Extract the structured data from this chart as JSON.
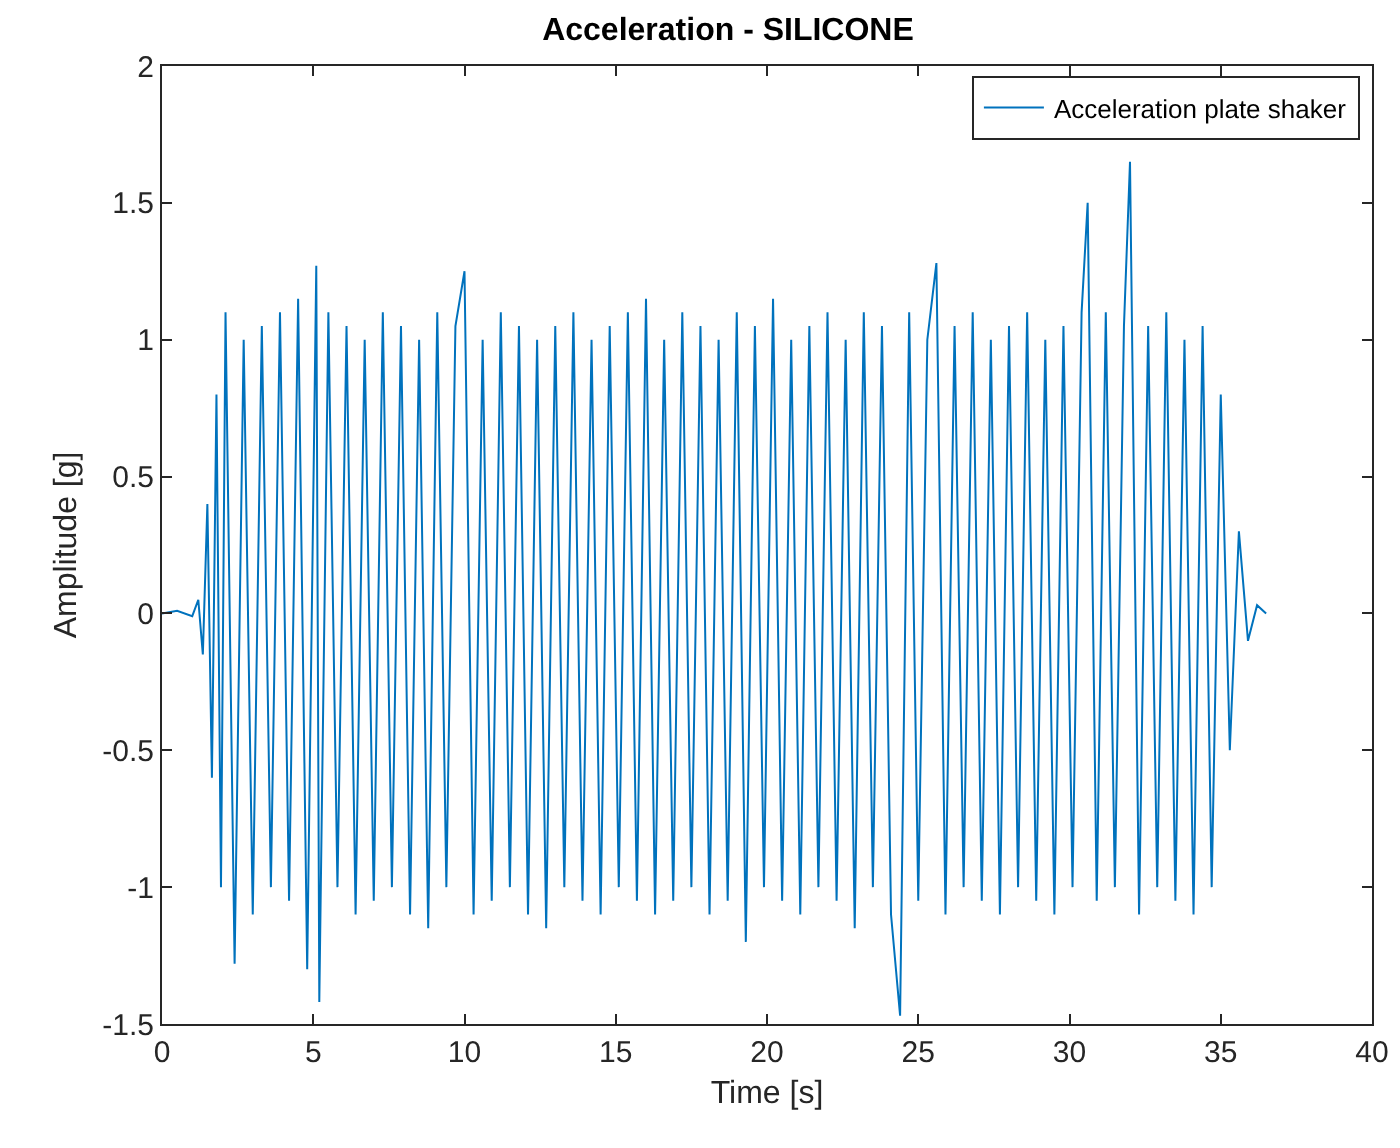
{
  "chart_data": {
    "type": "line",
    "title": "Acceleration - SILICONE",
    "xlabel": "Time [s]",
    "ylabel": "Amplitude [g]",
    "xlim": [
      0,
      40
    ],
    "xticks": [
      0,
      5,
      10,
      15,
      20,
      25,
      30,
      35,
      40
    ],
    "ylim": [
      -1.5,
      2
    ],
    "yticks": [
      -1.5,
      -1,
      -0.5,
      0,
      0.5,
      1,
      1.5,
      2
    ],
    "grid": false,
    "legend": "top right",
    "marker": "none",
    "line_style": "solid",
    "series": [
      {
        "name": "Acceleration plate shaker",
        "color": "#0072bd",
        "x": [
          0,
          0.5,
          1.0,
          1.2,
          1.35,
          1.5,
          1.65,
          1.8,
          1.95,
          2.1,
          2.4,
          2.7,
          3.0,
          3.3,
          3.6,
          3.9,
          4.2,
          4.5,
          4.8,
          5.1,
          5.2,
          5.5,
          5.8,
          6.1,
          6.4,
          6.7,
          7.0,
          7.3,
          7.6,
          7.9,
          8.2,
          8.5,
          8.8,
          9.1,
          9.4,
          9.7,
          10.0,
          10.3,
          10.6,
          10.9,
          11.2,
          11.5,
          11.8,
          12.1,
          12.4,
          12.7,
          13.0,
          13.3,
          13.6,
          13.9,
          14.2,
          14.5,
          14.8,
          15.1,
          15.4,
          15.7,
          16.0,
          16.3,
          16.6,
          16.9,
          17.2,
          17.5,
          17.8,
          18.1,
          18.4,
          18.7,
          19.0,
          19.3,
          19.6,
          19.9,
          20.2,
          20.5,
          20.8,
          21.1,
          21.4,
          21.7,
          22.0,
          22.3,
          22.6,
          22.9,
          23.2,
          23.5,
          23.8,
          24.1,
          24.4,
          24.7,
          25.0,
          25.3,
          25.6,
          25.9,
          26.2,
          26.5,
          26.8,
          27.1,
          27.4,
          27.7,
          28.0,
          28.3,
          28.6,
          28.9,
          29.2,
          29.5,
          29.8,
          30.1,
          30.4,
          30.6,
          30.9,
          31.2,
          31.5,
          31.8,
          32.0,
          32.3,
          32.6,
          32.9,
          33.2,
          33.5,
          33.8,
          34.1,
          34.4,
          34.7,
          35.0,
          35.3,
          35.6,
          35.9,
          36.2,
          36.5
        ],
        "values": [
          0,
          0.01,
          -0.01,
          0.05,
          -0.15,
          0.4,
          -0.6,
          0.8,
          -1.0,
          1.1,
          -1.28,
          1.0,
          -1.1,
          1.05,
          -1.0,
          1.1,
          -1.05,
          1.15,
          -1.3,
          1.27,
          -1.42,
          1.1,
          -1.0,
          1.05,
          -1.1,
          1.0,
          -1.05,
          1.1,
          -1.0,
          1.05,
          -1.1,
          1.0,
          -1.15,
          1.1,
          -1.0,
          1.05,
          1.25,
          -1.1,
          1.0,
          -1.05,
          1.1,
          -1.0,
          1.05,
          -1.1,
          1.0,
          -1.15,
          1.05,
          -1.0,
          1.1,
          -1.05,
          1.0,
          -1.1,
          1.05,
          -1.0,
          1.1,
          -1.05,
          1.15,
          -1.1,
          1.0,
          -1.05,
          1.1,
          -1.0,
          1.05,
          -1.1,
          1.0,
          -1.05,
          1.1,
          -1.2,
          1.05,
          -1.0,
          1.15,
          -1.05,
          1.0,
          -1.1,
          1.05,
          -1.0,
          1.1,
          -1.05,
          1.0,
          -1.15,
          1.1,
          -1.0,
          1.05,
          -1.1,
          -1.47,
          1.1,
          -1.05,
          1.0,
          1.28,
          -1.1,
          1.05,
          -1.0,
          1.1,
          -1.05,
          1.0,
          -1.1,
          1.05,
          -1.0,
          1.1,
          -1.05,
          1.0,
          -1.1,
          1.05,
          -1.0,
          1.1,
          1.5,
          -1.05,
          1.1,
          -1.0,
          1.05,
          1.65,
          -1.1,
          1.05,
          -1.0,
          1.1,
          -1.05,
          1.0,
          -1.1,
          1.05,
          -1.0,
          0.8,
          -0.5,
          0.3,
          -0.1,
          0.03,
          0
        ]
      }
    ]
  }
}
